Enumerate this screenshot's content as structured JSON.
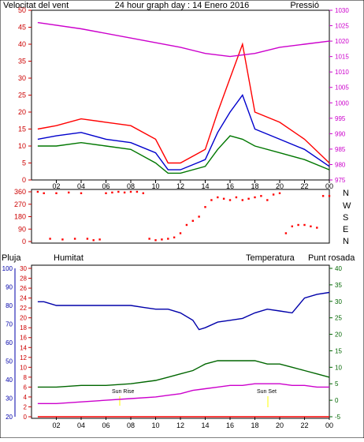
{
  "title": "24 hour graph day : 14 Enero 2016",
  "top_left_label": "Velocitat del vent",
  "top_right_label": "Pressió",
  "compass_letters": [
    "N",
    "W",
    "S",
    "E",
    "N"
  ],
  "bottom_labels": {
    "pluja": "Pluja",
    "humitat": "Humitat",
    "temperatura": "Temperatura",
    "punt_rosada": "Punt rosada"
  },
  "sun_labels": {
    "sunrise": "Sun Rise",
    "sunset": "Sun Set"
  },
  "colors": {
    "wind_max": "#ff0000",
    "wind_avg": "#0000cc",
    "wind_gust": "#007700",
    "pressure": "#cc00cc",
    "direction": "#ff0000",
    "humidity": "#0000aa",
    "temperature": "#006600",
    "dewpoint": "#cc00cc",
    "rain": "#ff0000",
    "sun": "#ffff00",
    "frame": "#000000"
  },
  "chart_data": [
    {
      "type": "line",
      "title": "24 hour graph day : 14 Enero 2016",
      "x_ticks": [
        "02",
        "04",
        "06",
        "08",
        "10",
        "12",
        "14",
        "16",
        "18",
        "20",
        "22",
        "00"
      ],
      "y_left_ticks": [
        "0",
        "5",
        "10",
        "15",
        "20",
        "25",
        "30",
        "35",
        "40",
        "45",
        "50"
      ],
      "y_right_ticks": [
        "975",
        "980",
        "985",
        "990",
        "995",
        "1000",
        "1005",
        "1010",
        "1015",
        "1020",
        "1025",
        "1030"
      ],
      "ylim_left": [
        0,
        50
      ],
      "ylim_right": [
        975,
        1030
      ],
      "series": [
        {
          "name": "Velocitat del vent",
          "axis": "left",
          "x": [
            0.5,
            2,
            4,
            6,
            8,
            10,
            11,
            12,
            14,
            15,
            16,
            17,
            18,
            20,
            22,
            24
          ],
          "values": [
            15,
            16,
            18,
            17,
            16,
            12,
            5,
            5,
            9,
            20,
            30,
            40,
            20,
            17,
            12,
            5
          ]
        },
        {
          "axis": "left",
          "x": [
            0.5,
            2,
            4,
            6,
            8,
            10,
            11,
            12,
            14,
            15,
            16,
            17,
            18,
            20,
            22,
            24
          ],
          "values": [
            12,
            13,
            14,
            12,
            11,
            8,
            3,
            3,
            6,
            14,
            20,
            25,
            15,
            12,
            9,
            4
          ]
        },
        {
          "axis": "left",
          "x": [
            0.5,
            2,
            4,
            6,
            8,
            10,
            11,
            12,
            14,
            15,
            16,
            17,
            18,
            20,
            22,
            24
          ],
          "values": [
            10,
            10,
            11,
            10,
            9,
            5,
            2,
            2,
            4,
            9,
            13,
            12,
            10,
            8,
            6,
            3
          ]
        },
        {
          "name": "Pressió",
          "axis": "right",
          "x": [
            0.5,
            4,
            8,
            12,
            14,
            16,
            18,
            20,
            22,
            24
          ],
          "values": [
            1026,
            1024,
            1021,
            1018,
            1016,
            1015,
            1016,
            1018,
            1019,
            1020
          ]
        }
      ]
    },
    {
      "type": "scatter",
      "y_ticks": [
        "360",
        "270",
        "180",
        "90",
        "0"
      ],
      "ylim": [
        0,
        360
      ],
      "series": [
        {
          "x": [
            0.5,
            1,
            1.5,
            2,
            2.5,
            3,
            3.5,
            4,
            4.5,
            5,
            5.5,
            6,
            6.5,
            7,
            7.5,
            8,
            8.5,
            9,
            9.5,
            10,
            10.5,
            11,
            11.5,
            12,
            12.5,
            13,
            13.5,
            14,
            14.5,
            15,
            15.5,
            16,
            16.5,
            17,
            17.5,
            18,
            18.5,
            19,
            19.5,
            20,
            20.5,
            21,
            21.5,
            22,
            22.5,
            23,
            23.5,
            24
          ],
          "values": [
            360,
            350,
            20,
            350,
            15,
            355,
            20,
            350,
            20,
            10,
            15,
            350,
            355,
            360,
            355,
            360,
            360,
            350,
            20,
            10,
            15,
            20,
            30,
            60,
            120,
            150,
            180,
            250,
            300,
            320,
            310,
            300,
            320,
            300,
            310,
            320,
            330,
            300,
            340,
            350,
            60,
            110,
            120,
            120,
            110,
            100,
            330,
            330
          ]
        }
      ]
    },
    {
      "type": "line",
      "x_ticks": [
        "02",
        "04",
        "06",
        "08",
        "10",
        "12",
        "14",
        "16",
        "18",
        "20",
        "22",
        "00"
      ],
      "y_ticks_humidity": [
        "20",
        "30",
        "40",
        "50",
        "60",
        "70",
        "80",
        "90",
        "100"
      ],
      "y_ticks_rain": [
        "0",
        "2",
        "4",
        "6",
        "8",
        "10",
        "12",
        "14",
        "16",
        "18",
        "20",
        "22",
        "24",
        "26",
        "28",
        "30"
      ],
      "y_ticks_temp": [
        "-5",
        "0",
        "5",
        "10",
        "15",
        "20",
        "25",
        "30",
        "35",
        "40"
      ],
      "ylim_humidity": [
        20,
        100
      ],
      "ylim_temp": [
        -5,
        40
      ],
      "series": [
        {
          "name": "Humitat",
          "axis": "humidity",
          "x": [
            0.5,
            1,
            2,
            3,
            4,
            6,
            8,
            9,
            10,
            11,
            12,
            13,
            13.5,
            14,
            15,
            16,
            17,
            18,
            19,
            20,
            21,
            22,
            23,
            24
          ],
          "values": [
            82,
            82,
            80,
            80,
            80,
            80,
            80,
            79,
            78,
            78,
            76,
            72,
            67,
            68,
            71,
            72,
            73,
            76,
            78,
            77,
            76,
            84,
            86,
            87
          ]
        },
        {
          "name": "Temperatura",
          "axis": "temp",
          "x": [
            0.5,
            2,
            4,
            6,
            8,
            10,
            11,
            12,
            13,
            14,
            15,
            16,
            17,
            18,
            19,
            20,
            21,
            22,
            23,
            24
          ],
          "values": [
            4,
            4,
            4.5,
            4.5,
            5,
            6,
            7,
            8,
            9,
            11,
            12,
            12,
            12,
            12,
            11,
            11,
            10,
            9,
            8,
            7
          ]
        },
        {
          "name": "Punt rosada",
          "axis": "temp",
          "x": [
            0.5,
            2,
            4,
            6,
            8,
            10,
            11,
            12,
            13,
            14,
            15,
            16,
            17,
            18,
            19,
            20,
            21,
            22,
            23,
            24
          ],
          "values": [
            -1,
            -1,
            -0.5,
            0,
            0.5,
            1,
            1.5,
            2,
            3,
            3.5,
            4,
            4.5,
            4.5,
            5,
            5,
            5,
            4.5,
            4.5,
            4,
            4
          ]
        },
        {
          "name": "Pluja",
          "axis": "rain",
          "x": [
            0.5,
            24
          ],
          "values": [
            0,
            0
          ]
        }
      ]
    }
  ]
}
